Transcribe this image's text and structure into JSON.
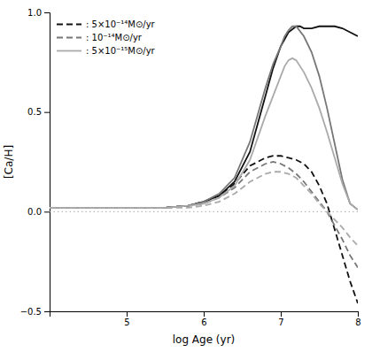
{
  "chart_data": {
    "type": "line",
    "xlabel": "log Age (yr)",
    "ylabel": "[Ca/H]",
    "xlim": [
      4.0,
      8.0
    ],
    "ylim": [
      -0.5,
      1.0
    ],
    "xticks": [
      5,
      6,
      7,
      8
    ],
    "yticks": [
      {
        "value": -0.5,
        "label": "−0.5"
      },
      {
        "value": 0.0,
        "label": "0.0"
      },
      0.5,
      {
        "value": 1.0,
        "label": "1.0"
      }
    ],
    "grid": false,
    "legend": "upper-left",
    "series": [
      {
        "color": "#111111",
        "line_style": "solid",
        "x": [
          4.0,
          4.5,
          5.0,
          5.5,
          5.8,
          6.0,
          6.2,
          6.4,
          6.6,
          6.8,
          6.9,
          7.0,
          7.1,
          7.2,
          7.25,
          7.3,
          7.4,
          7.5,
          7.6,
          7.7,
          7.8,
          7.9,
          8.0
        ],
        "values": [
          0.02,
          0.02,
          0.02,
          0.02,
          0.03,
          0.05,
          0.08,
          0.15,
          0.3,
          0.58,
          0.72,
          0.83,
          0.9,
          0.93,
          0.93,
          0.92,
          0.92,
          0.93,
          0.93,
          0.93,
          0.92,
          0.9,
          0.88
        ]
      },
      {
        "name": ": 5×10⁻¹⁴M⊙/yr",
        "color": "#111111",
        "line_style": "dashed",
        "x": [
          4.0,
          4.5,
          5.0,
          5.5,
          5.8,
          6.0,
          6.2,
          6.4,
          6.6,
          6.8,
          6.9,
          7.0,
          7.1,
          7.2,
          7.3,
          7.4,
          7.5,
          7.6,
          7.7,
          7.8,
          7.9,
          8.0
        ],
        "values": [
          0.02,
          0.02,
          0.02,
          0.02,
          0.03,
          0.05,
          0.08,
          0.14,
          0.23,
          0.27,
          0.28,
          0.28,
          0.27,
          0.26,
          0.24,
          0.2,
          0.13,
          0.04,
          -0.09,
          -0.22,
          -0.35,
          -0.46
        ]
      },
      {
        "color": "#777777",
        "line_style": "solid",
        "x": [
          4.0,
          4.5,
          5.0,
          5.5,
          5.8,
          6.0,
          6.2,
          6.4,
          6.6,
          6.8,
          6.9,
          7.0,
          7.05,
          7.1,
          7.15,
          7.2,
          7.3,
          7.4,
          7.5,
          7.6,
          7.7,
          7.8,
          7.9,
          8.0
        ],
        "values": [
          0.02,
          0.02,
          0.02,
          0.02,
          0.03,
          0.05,
          0.09,
          0.17,
          0.35,
          0.62,
          0.74,
          0.83,
          0.88,
          0.91,
          0.93,
          0.93,
          0.88,
          0.8,
          0.68,
          0.52,
          0.34,
          0.16,
          0.04,
          0.01
        ]
      },
      {
        "name": ": 10⁻¹⁴M⊙/yr",
        "color": "#777777",
        "line_style": "dashed",
        "x": [
          4.0,
          4.5,
          5.0,
          5.5,
          5.8,
          6.0,
          6.2,
          6.4,
          6.6,
          6.8,
          6.9,
          7.0,
          7.1,
          7.2,
          7.3,
          7.4,
          7.5,
          7.6,
          7.7,
          7.8,
          7.9,
          8.0
        ],
        "values": [
          0.02,
          0.02,
          0.02,
          0.02,
          0.03,
          0.04,
          0.07,
          0.12,
          0.2,
          0.24,
          0.25,
          0.24,
          0.22,
          0.19,
          0.15,
          0.1,
          0.05,
          0.0,
          -0.07,
          -0.14,
          -0.22,
          -0.28
        ]
      },
      {
        "name": ": 5×10⁻¹⁵M⊙/yr",
        "color": "#aaaaaa",
        "line_style": "solid",
        "x": [
          4.0,
          4.5,
          5.0,
          5.5,
          5.8,
          6.0,
          6.2,
          6.4,
          6.6,
          6.8,
          6.9,
          7.0,
          7.05,
          7.1,
          7.15,
          7.2,
          7.3,
          7.4,
          7.5,
          7.6,
          7.7,
          7.8,
          7.9,
          8.0
        ],
        "values": [
          0.02,
          0.02,
          0.02,
          0.02,
          0.03,
          0.04,
          0.07,
          0.13,
          0.26,
          0.48,
          0.58,
          0.68,
          0.73,
          0.76,
          0.77,
          0.76,
          0.7,
          0.62,
          0.52,
          0.4,
          0.27,
          0.14,
          0.04,
          0.01
        ]
      },
      {
        "color": "#aaaaaa",
        "line_style": "dashed",
        "x": [
          4.0,
          4.5,
          5.0,
          5.5,
          5.8,
          6.0,
          6.2,
          6.4,
          6.6,
          6.8,
          6.9,
          7.0,
          7.1,
          7.2,
          7.3,
          7.4,
          7.5,
          7.6,
          7.7,
          7.8,
          7.9,
          8.0
        ],
        "values": [
          0.02,
          0.02,
          0.02,
          0.02,
          0.02,
          0.03,
          0.05,
          0.09,
          0.15,
          0.19,
          0.2,
          0.2,
          0.19,
          0.17,
          0.13,
          0.09,
          0.04,
          0.0,
          -0.04,
          -0.08,
          -0.13,
          -0.17
        ]
      }
    ],
    "hline": {
      "y": 0.0,
      "color": "#aaaaaa",
      "line_style": "dotted"
    }
  }
}
